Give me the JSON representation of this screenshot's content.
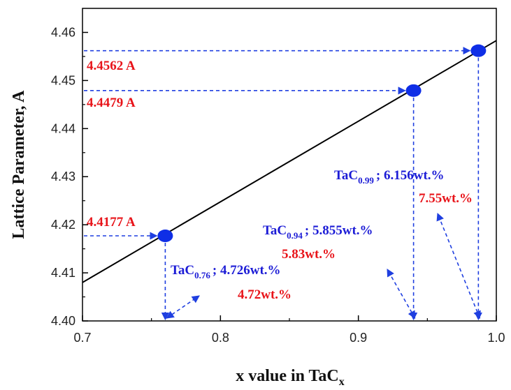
{
  "chart_data": {
    "type": "scatter",
    "xlabel": "x value in TaC",
    "xlabel_subscript": "x",
    "ylabel": "Lattice Parameter, A",
    "xlim": [
      0.7,
      1.0
    ],
    "ylim": [
      4.4,
      4.465
    ],
    "x_ticks": [
      0.7,
      0.8,
      0.9,
      1.0
    ],
    "x_tick_labels": [
      "0.7",
      "0.8",
      "0.9",
      "1.0"
    ],
    "y_ticks": [
      4.4,
      4.41,
      4.42,
      4.43,
      4.44,
      4.45,
      4.46
    ],
    "y_tick_labels": [
      "4.40",
      "4.41",
      "4.42",
      "4.43",
      "4.44",
      "4.45",
      "4.46"
    ],
    "fit_line": {
      "x": [
        0.7,
        1.0
      ],
      "y": [
        4.408,
        4.4583
      ]
    },
    "points": [
      {
        "x": 0.76,
        "y": 4.4177
      },
      {
        "x": 0.94,
        "y": 4.4479
      },
      {
        "x": 0.987,
        "y": 4.4562
      }
    ],
    "value_labels": [
      "4.4177 A",
      "4.4479 A",
      "4.4562 A"
    ],
    "compositions": [
      {
        "formula": "TaC",
        "subscript": "0.76",
        "suffix": "; 4.726wt.%",
        "measured": "4.72wt.%"
      },
      {
        "formula": "TaC",
        "subscript": "0.94",
        "suffix": "; 5.855wt.%",
        "measured": "5.83wt.%"
      },
      {
        "formula": "TaC",
        "subscript": "0.99",
        "suffix": "; 6.156wt.%",
        "measured": "7.55wt.%"
      }
    ],
    "colors": {
      "point": "#0f2ee6",
      "guide": "#1f3fe0",
      "line": "#000000",
      "red": "#e8141a",
      "blue": "#1c1cd6"
    }
  }
}
